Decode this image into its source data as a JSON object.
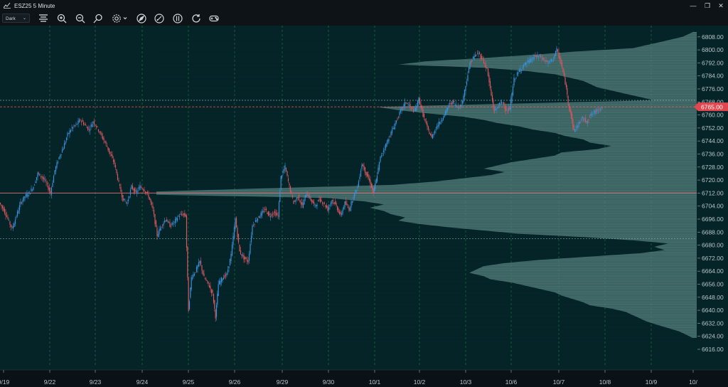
{
  "window": {
    "title": "ESZ25 5 Minute",
    "minimize_glyph": "—",
    "restore_glyph": "❐",
    "close_glyph": "✕"
  },
  "toolbar": {
    "theme_value": "Dark",
    "icons": [
      "align-center-icon",
      "zoom-in-icon",
      "zoom-out-icon",
      "search-icon",
      "gear-icon",
      "compass-icon",
      "pen-icon",
      "bars-icon",
      "refresh-icon",
      "gamepad-icon"
    ]
  },
  "colors": {
    "background": "#042428",
    "up": "#3b8fd6",
    "down": "#d9575e",
    "profile": "#5e8b86",
    "price_tag": "#e0474f",
    "grid": "#1f6b3a"
  },
  "chart_data": {
    "type": "candlestick",
    "symbol": "ESZ25",
    "interval": "5 Minute",
    "current_price": "6765.00",
    "y_ticks": [
      "6808.00",
      "6800.00",
      "6792.00",
      "6784.00",
      "6776.00",
      "6768.00",
      "6760.00",
      "6752.00",
      "6744.00",
      "6736.00",
      "6728.00",
      "6720.00",
      "6712.00",
      "6704.00",
      "6696.00",
      "6688.00",
      "6680.00",
      "6672.00",
      "6664.00",
      "6656.00",
      "6648.00",
      "6640.00",
      "6632.00",
      "6624.00",
      "6616.00"
    ],
    "x_ticks": [
      "9/19",
      "9/22",
      "9/23",
      "9/24",
      "9/25",
      "9/26",
      "9/29",
      "9/30",
      "10/1",
      "10/2",
      "10/3",
      "10/6",
      "10/7",
      "10/8",
      "10/9",
      "10/"
    ],
    "ylim": [
      6614,
      6812
    ],
    "point_of_control": 6712,
    "value_area_high": 6769,
    "value_area_low": 6684,
    "close_path": [
      [
        0,
        6706
      ],
      [
        6,
        6702
      ],
      [
        12,
        6696
      ],
      [
        18,
        6690
      ],
      [
        24,
        6698
      ],
      [
        30,
        6706
      ],
      [
        36,
        6710
      ],
      [
        42,
        6712
      ],
      [
        48,
        6716
      ],
      [
        54,
        6724
      ],
      [
        60,
        6722
      ],
      [
        66,
        6718
      ],
      [
        72,
        6712
      ],
      [
        78,
        6726
      ],
      [
        84,
        6734
      ],
      [
        90,
        6740
      ],
      [
        96,
        6748
      ],
      [
        102,
        6752
      ],
      [
        108,
        6754
      ],
      [
        114,
        6757
      ],
      [
        120,
        6754
      ],
      [
        126,
        6751
      ],
      [
        132,
        6756
      ],
      [
        138,
        6752
      ],
      [
        144,
        6747
      ],
      [
        150,
        6742
      ],
      [
        156,
        6736
      ],
      [
        162,
        6730
      ],
      [
        168,
        6718
      ],
      [
        174,
        6708
      ],
      [
        180,
        6706
      ],
      [
        186,
        6716
      ],
      [
        192,
        6712
      ],
      [
        198,
        6716
      ],
      [
        204,
        6714
      ],
      [
        210,
        6710
      ],
      [
        216,
        6702
      ],
      [
        222,
        6686
      ],
      [
        228,
        6692
      ],
      [
        234,
        6696
      ],
      [
        240,
        6692
      ],
      [
        246,
        6694
      ],
      [
        252,
        6698
      ],
      [
        258,
        6699
      ],
      [
        262,
        6698
      ],
      [
        266,
        6640
      ],
      [
        270,
        6660
      ],
      [
        276,
        6664
      ],
      [
        282,
        6670
      ],
      [
        288,
        6660
      ],
      [
        294,
        6656
      ],
      [
        300,
        6650
      ],
      [
        304,
        6636
      ],
      [
        308,
        6656
      ],
      [
        314,
        6660
      ],
      [
        320,
        6662
      ],
      [
        326,
        6674
      ],
      [
        332,
        6696
      ],
      [
        338,
        6676
      ],
      [
        344,
        6672
      ],
      [
        350,
        6670
      ],
      [
        356,
        6692
      ],
      [
        362,
        6696
      ],
      [
        368,
        6699
      ],
      [
        374,
        6702
      ],
      [
        380,
        6698
      ],
      [
        386,
        6700
      ],
      [
        392,
        6698
      ],
      [
        396,
        6722
      ],
      [
        402,
        6728
      ],
      [
        408,
        6716
      ],
      [
        414,
        6706
      ],
      [
        420,
        6710
      ],
      [
        426,
        6704
      ],
      [
        432,
        6712
      ],
      [
        438,
        6708
      ],
      [
        444,
        6704
      ],
      [
        450,
        6708
      ],
      [
        456,
        6706
      ],
      [
        462,
        6702
      ],
      [
        468,
        6708
      ],
      [
        474,
        6704
      ],
      [
        480,
        6698
      ],
      [
        486,
        6706
      ],
      [
        492,
        6702
      ],
      [
        498,
        6710
      ],
      [
        504,
        6716
      ],
      [
        510,
        6730
      ],
      [
        516,
        6724
      ],
      [
        522,
        6718
      ],
      [
        526,
        6712
      ],
      [
        530,
        6720
      ],
      [
        536,
        6734
      ],
      [
        542,
        6740
      ],
      [
        548,
        6746
      ],
      [
        554,
        6752
      ],
      [
        560,
        6758
      ],
      [
        566,
        6764
      ],
      [
        572,
        6768
      ],
      [
        578,
        6765
      ],
      [
        584,
        6762
      ],
      [
        590,
        6770
      ],
      [
        596,
        6760
      ],
      [
        602,
        6752
      ],
      [
        608,
        6746
      ],
      [
        614,
        6752
      ],
      [
        620,
        6756
      ],
      [
        626,
        6760
      ],
      [
        632,
        6766
      ],
      [
        638,
        6768
      ],
      [
        644,
        6765
      ],
      [
        650,
        6766
      ],
      [
        656,
        6778
      ],
      [
        662,
        6792
      ],
      [
        668,
        6796
      ],
      [
        674,
        6798
      ],
      [
        680,
        6794
      ],
      [
        686,
        6788
      ],
      [
        692,
        6772
      ],
      [
        696,
        6762
      ],
      [
        702,
        6766
      ],
      [
        708,
        6768
      ],
      [
        714,
        6762
      ],
      [
        718,
        6764
      ],
      [
        724,
        6782
      ],
      [
        730,
        6786
      ],
      [
        736,
        6790
      ],
      [
        742,
        6792
      ],
      [
        748,
        6794
      ],
      [
        754,
        6796
      ],
      [
        760,
        6796
      ],
      [
        766,
        6794
      ],
      [
        772,
        6792
      ],
      [
        778,
        6794
      ],
      [
        784,
        6800
      ],
      [
        790,
        6792
      ],
      [
        796,
        6780
      ],
      [
        800,
        6768
      ],
      [
        804,
        6760
      ],
      [
        808,
        6750
      ],
      [
        814,
        6754
      ],
      [
        820,
        6758
      ],
      [
        826,
        6756
      ],
      [
        832,
        6760
      ],
      [
        838,
        6762
      ],
      [
        844,
        6764
      ],
      [
        848,
        6765
      ]
    ],
    "volume_profile_vertices": [
      [
        6811,
        5
      ],
      [
        6808,
        20
      ],
      [
        6805,
        50
      ],
      [
        6801,
        90
      ],
      [
        6799,
        170
      ],
      [
        6797,
        230
      ],
      [
        6795,
        300
      ],
      [
        6793,
        380
      ],
      [
        6791,
        420
      ],
      [
        6789,
        300
      ],
      [
        6787,
        240
      ],
      [
        6785,
        200
      ],
      [
        6783,
        180
      ],
      [
        6781,
        160
      ],
      [
        6779,
        150
      ],
      [
        6777,
        140
      ],
      [
        6775,
        120
      ],
      [
        6773,
        100
      ],
      [
        6771,
        80
      ],
      [
        6769,
        60
      ],
      [
        6767,
        260
      ],
      [
        6765,
        450
      ],
      [
        6763,
        420
      ],
      [
        6761,
        380
      ],
      [
        6759,
        330
      ],
      [
        6757,
        300
      ],
      [
        6755,
        280
      ],
      [
        6753,
        250
      ],
      [
        6751,
        230
      ],
      [
        6749,
        200
      ],
      [
        6747,
        185
      ],
      [
        6745,
        160
      ],
      [
        6743,
        150
      ],
      [
        6741,
        120
      ],
      [
        6739,
        140
      ],
      [
        6737,
        190
      ],
      [
        6735,
        200
      ],
      [
        6733,
        230
      ],
      [
        6731,
        260
      ],
      [
        6729,
        280
      ],
      [
        6727,
        300
      ],
      [
        6725,
        270
      ],
      [
        6723,
        290
      ],
      [
        6721,
        330
      ],
      [
        6719,
        370
      ],
      [
        6717,
        430
      ],
      [
        6715,
        600
      ],
      [
        6713,
        760
      ],
      [
        6711,
        760
      ],
      [
        6709,
        520
      ],
      [
        6707,
        470
      ],
      [
        6705,
        440
      ],
      [
        6703,
        460
      ],
      [
        6701,
        440
      ],
      [
        6699,
        430
      ],
      [
        6697,
        410
      ],
      [
        6695,
        420
      ],
      [
        6693,
        390
      ],
      [
        6691,
        350
      ],
      [
        6689,
        300
      ],
      [
        6687,
        250
      ],
      [
        6685,
        160
      ],
      [
        6683,
        90
      ],
      [
        6681,
        40
      ],
      [
        6679,
        60
      ],
      [
        6677,
        45
      ],
      [
        6675,
        80
      ],
      [
        6673,
        150
      ],
      [
        6671,
        220
      ],
      [
        6669,
        270
      ],
      [
        6667,
        300
      ],
      [
        6665,
        310
      ],
      [
        6663,
        320
      ],
      [
        6661,
        300
      ],
      [
        6659,
        290
      ],
      [
        6657,
        260
      ],
      [
        6655,
        240
      ],
      [
        6653,
        220
      ],
      [
        6651,
        200
      ],
      [
        6649,
        190
      ],
      [
        6647,
        175
      ],
      [
        6645,
        160
      ],
      [
        6643,
        150
      ],
      [
        6641,
        120
      ],
      [
        6639,
        100
      ],
      [
        6637,
        90
      ],
      [
        6635,
        80
      ],
      [
        6633,
        70
      ],
      [
        6631,
        55
      ],
      [
        6629,
        40
      ],
      [
        6627,
        25
      ],
      [
        6625,
        15
      ],
      [
        6623,
        6
      ]
    ]
  }
}
